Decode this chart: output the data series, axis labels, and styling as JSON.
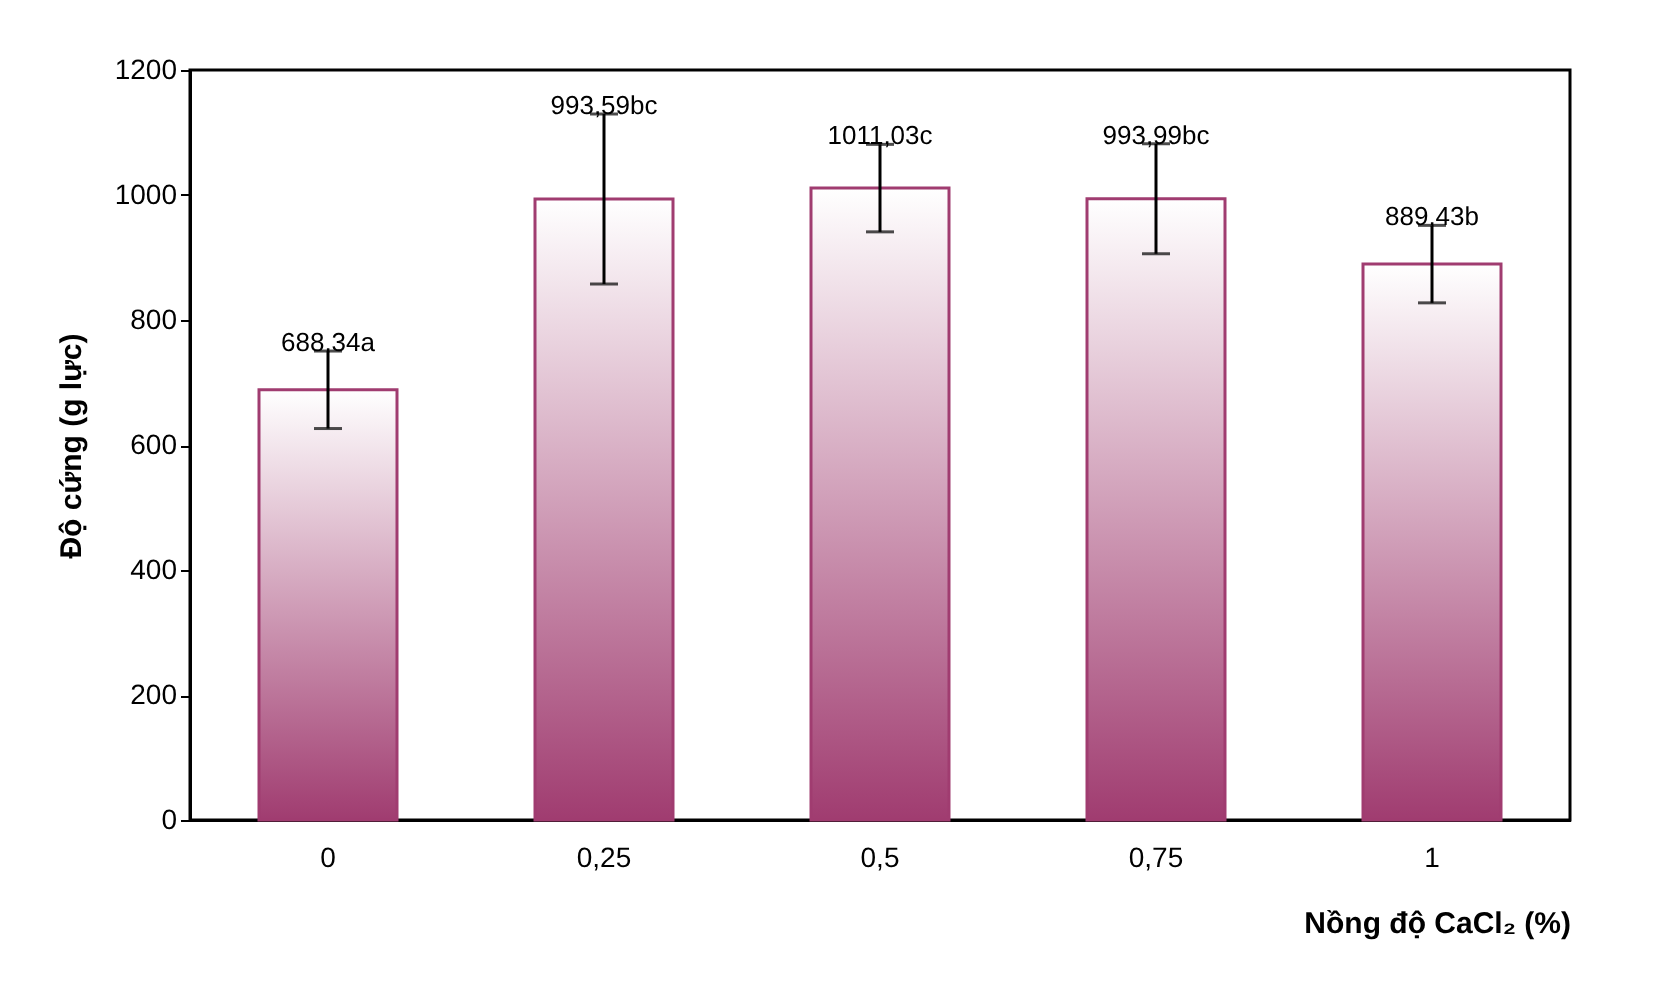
{
  "chart_data": {
    "type": "bar",
    "xlabel": "Nồng độ CaCl₂ (%)",
    "ylabel": "Độ cứng (g lực)",
    "categories": [
      "0",
      "0,25",
      "0,5",
      "0,75",
      "1"
    ],
    "values": [
      688.34,
      993.59,
      1011.03,
      993.99,
      889.43
    ],
    "errors": [
      62,
      136,
      70,
      88,
      62
    ],
    "value_labels": [
      "688,34a",
      "993,59bc",
      "1011,03c",
      "993,99bc",
      "889,43b"
    ],
    "color": "#a03c70",
    "ylim": [
      0,
      1200
    ],
    "yticks": [
      0,
      200,
      400,
      600,
      800,
      1000,
      1200
    ],
    "grid": false
  }
}
